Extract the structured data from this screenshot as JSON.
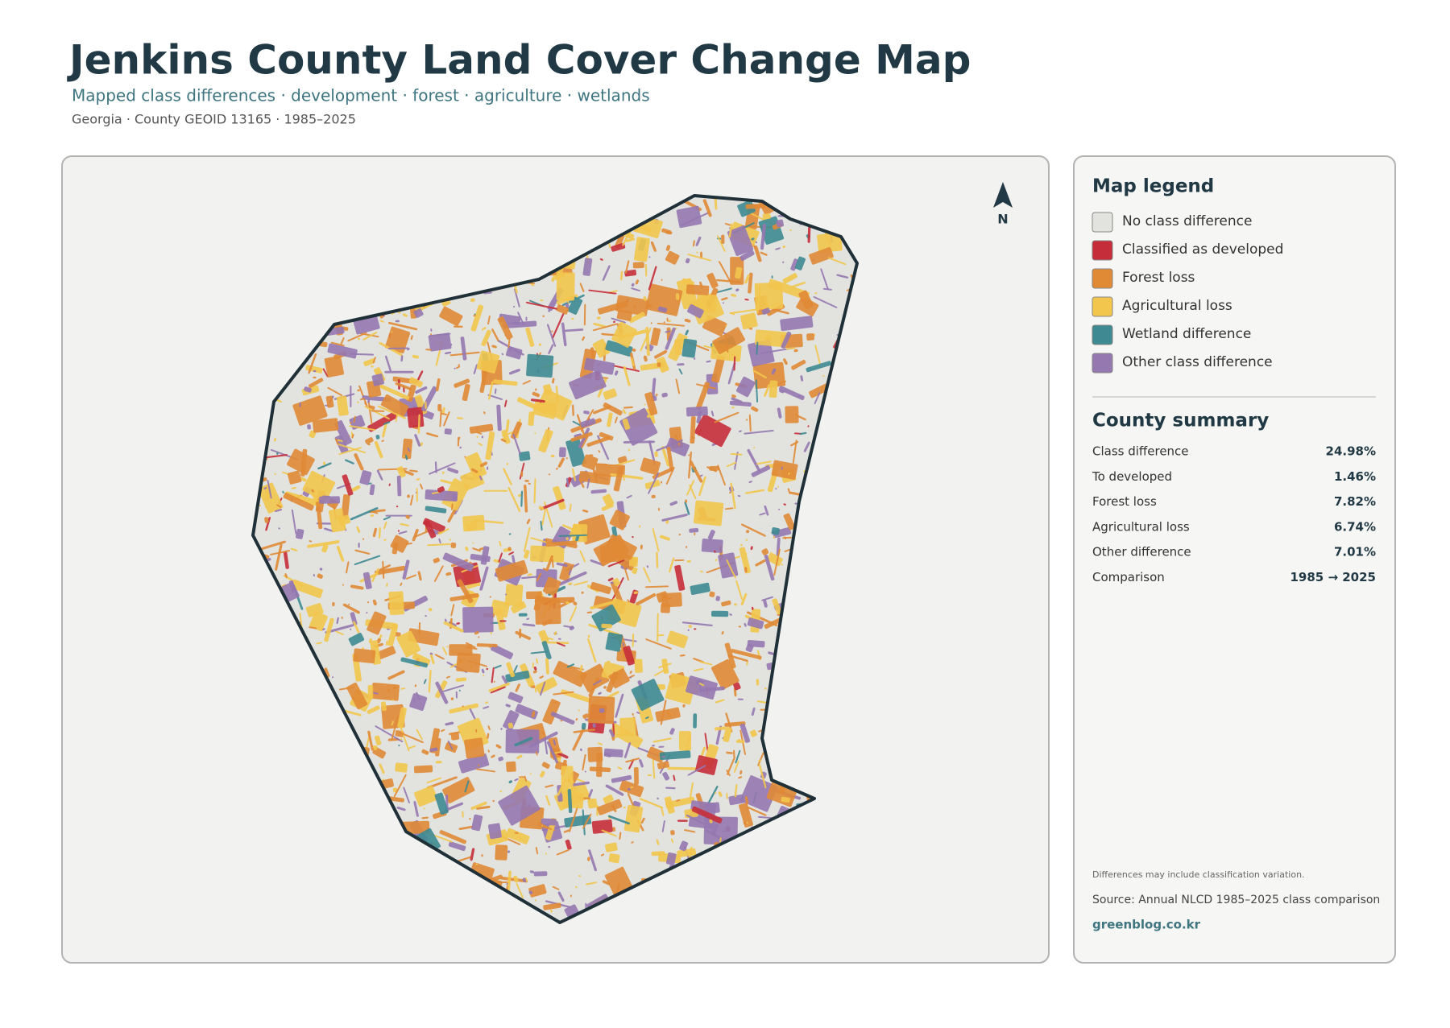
{
  "header": {
    "title": "Jenkins County Land Cover Change Map",
    "subtitle": "Mapped class differences · development · forest · agriculture · wetlands",
    "meta": "Georgia · County GEOID 13165 · 1985–2025"
  },
  "map": {
    "north_label": "N"
  },
  "legend": {
    "title": "Map legend",
    "items": [
      {
        "label": "No class difference",
        "color": "#e2e3df"
      },
      {
        "label": "Classified as developed",
        "color": "#c62d3a"
      },
      {
        "label": "Forest loss",
        "color": "#e08a35"
      },
      {
        "label": "Agricultural loss",
        "color": "#f2c54c"
      },
      {
        "label": "Wetland difference",
        "color": "#3f8a92"
      },
      {
        "label": "Other class difference",
        "color": "#9678b0"
      }
    ]
  },
  "summary": {
    "title": "County summary",
    "rows": [
      [
        "Class difference",
        "24.98%"
      ],
      [
        "To developed",
        "1.46%"
      ],
      [
        "Forest loss",
        "7.82%"
      ],
      [
        "Agricultural loss",
        "6.74%"
      ],
      [
        "Other difference",
        "7.01%"
      ],
      [
        "Comparison",
        "1985 → 2025"
      ]
    ]
  },
  "footer": {
    "note": "Differences may include classification variation.",
    "source": "Source: Annual NLCD 1985–2025 class comparison",
    "site": "greenblog.co.kr"
  }
}
